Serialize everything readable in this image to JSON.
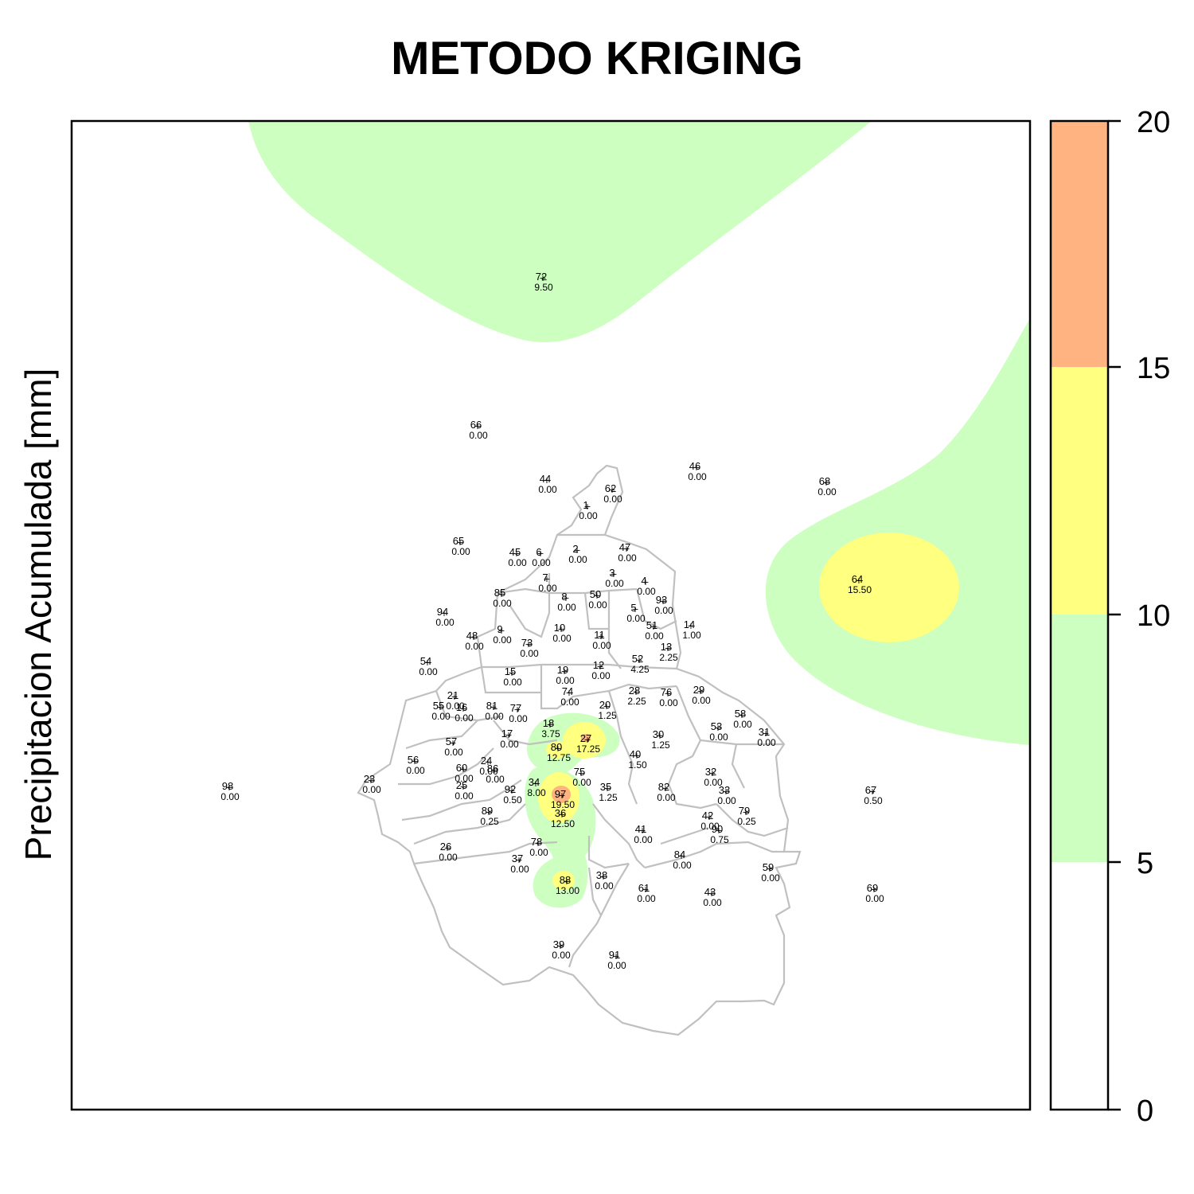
{
  "title": "METODO KRIGING",
  "ylabel": "Precipitacion Acumulada [mm]",
  "colors": {
    "band_0_5": "#ffffff",
    "band_5_10": "#ccffc0",
    "band_10_15": "#ffff80",
    "band_15_20": "#ffb380",
    "boundary": "#c0c0c0"
  },
  "colorbar": {
    "ticks": [
      "0",
      "5",
      "10",
      "15",
      "20"
    ],
    "bands": [
      {
        "min": 0,
        "max": 5,
        "color": "#ffffff"
      },
      {
        "min": 5,
        "max": 10,
        "color": "#ccffc0"
      },
      {
        "min": 10,
        "max": 15,
        "color": "#ffff80"
      },
      {
        "min": 15,
        "max": 20,
        "color": "#ffb380"
      }
    ]
  },
  "stations": [
    {
      "id": "72",
      "value": "9.50"
    },
    {
      "id": "66",
      "value": "0.00"
    },
    {
      "id": "46",
      "value": "0.00"
    },
    {
      "id": "44",
      "value": "0.00"
    },
    {
      "id": "62",
      "value": "0.00"
    },
    {
      "id": "68",
      "value": "0.00"
    },
    {
      "id": "1",
      "value": "0.00"
    },
    {
      "id": "65",
      "value": "0.00"
    },
    {
      "id": "45",
      "value": "0.00"
    },
    {
      "id": "6",
      "value": "0.00"
    },
    {
      "id": "2",
      "value": "0.00"
    },
    {
      "id": "47",
      "value": "0.00"
    },
    {
      "id": "7",
      "value": "0.00"
    },
    {
      "id": "3",
      "value": "0.00"
    },
    {
      "id": "4",
      "value": "0.00"
    },
    {
      "id": "64",
      "value": "15.50"
    },
    {
      "id": "85",
      "value": "0.00"
    },
    {
      "id": "8",
      "value": "0.00"
    },
    {
      "id": "50",
      "value": "0.00"
    },
    {
      "id": "93",
      "value": "0.00"
    },
    {
      "id": "5",
      "value": "0.00"
    },
    {
      "id": "94",
      "value": "0.00"
    },
    {
      "id": "14",
      "value": "1.00"
    },
    {
      "id": "10",
      "value": "0.00"
    },
    {
      "id": "51",
      "value": "0.00"
    },
    {
      "id": "9",
      "value": "0.00"
    },
    {
      "id": "48",
      "value": "0.00"
    },
    {
      "id": "73",
      "value": "0.00"
    },
    {
      "id": "11",
      "value": "0.00"
    },
    {
      "id": "13",
      "value": "2.25"
    },
    {
      "id": "54",
      "value": "0.00"
    },
    {
      "id": "15",
      "value": "0.00"
    },
    {
      "id": "19",
      "value": "0.00"
    },
    {
      "id": "12",
      "value": "0.00"
    },
    {
      "id": "52",
      "value": "4.25"
    },
    {
      "id": "28",
      "value": "2.25"
    },
    {
      "id": "74",
      "value": "0.00"
    },
    {
      "id": "76",
      "value": "0.00"
    },
    {
      "id": "29",
      "value": "0.00"
    },
    {
      "id": "21",
      "value": "0.00"
    },
    {
      "id": "55",
      "value": "0.00"
    },
    {
      "id": "16",
      "value": "0.00"
    },
    {
      "id": "81",
      "value": "0.00"
    },
    {
      "id": "77",
      "value": "0.00"
    },
    {
      "id": "20",
      "value": "1.25"
    },
    {
      "id": "58",
      "value": "0.00"
    },
    {
      "id": "18",
      "value": "3.75"
    },
    {
      "id": "53",
      "value": "0.00"
    },
    {
      "id": "31",
      "value": "0.00"
    },
    {
      "id": "17",
      "value": "0.00"
    },
    {
      "id": "27",
      "value": "17.25"
    },
    {
      "id": "30",
      "value": "1.25"
    },
    {
      "id": "57",
      "value": "0.00"
    },
    {
      "id": "80",
      "value": "12.75"
    },
    {
      "id": "40",
      "value": "1.50"
    },
    {
      "id": "56",
      "value": "0.00"
    },
    {
      "id": "24",
      "value": "0.00"
    },
    {
      "id": "60",
      "value": "0.00"
    },
    {
      "id": "86",
      "value": "0.00"
    },
    {
      "id": "75",
      "value": "0.00"
    },
    {
      "id": "32",
      "value": "0.00"
    },
    {
      "id": "23",
      "value": "0.00"
    },
    {
      "id": "34",
      "value": "8.00"
    },
    {
      "id": "98",
      "value": "0.00"
    },
    {
      "id": "25",
      "value": "0.00"
    },
    {
      "id": "92",
      "value": "0.50"
    },
    {
      "id": "97",
      "value": "19.50"
    },
    {
      "id": "35",
      "value": "1.25"
    },
    {
      "id": "82",
      "value": "0.00"
    },
    {
      "id": "33",
      "value": "0.00"
    },
    {
      "id": "67",
      "value": "0.50"
    },
    {
      "id": "89",
      "value": "0.25"
    },
    {
      "id": "36",
      "value": "12.50"
    },
    {
      "id": "42",
      "value": "0.00"
    },
    {
      "id": "79",
      "value": "0.25"
    },
    {
      "id": "90",
      "value": "0.75"
    },
    {
      "id": "41",
      "value": "0.00"
    },
    {
      "id": "26",
      "value": "0.00"
    },
    {
      "id": "78",
      "value": "0.00"
    },
    {
      "id": "84",
      "value": "0.00"
    },
    {
      "id": "37",
      "value": "0.00"
    },
    {
      "id": "59",
      "value": "0.00"
    },
    {
      "id": "38",
      "value": "0.00"
    },
    {
      "id": "88",
      "value": "13.00"
    },
    {
      "id": "61",
      "value": "0.00"
    },
    {
      "id": "43",
      "value": "0.00"
    },
    {
      "id": "69",
      "value": "0.00"
    },
    {
      "id": "39",
      "value": "0.00"
    },
    {
      "id": "91",
      "value": "0.00"
    }
  ]
}
